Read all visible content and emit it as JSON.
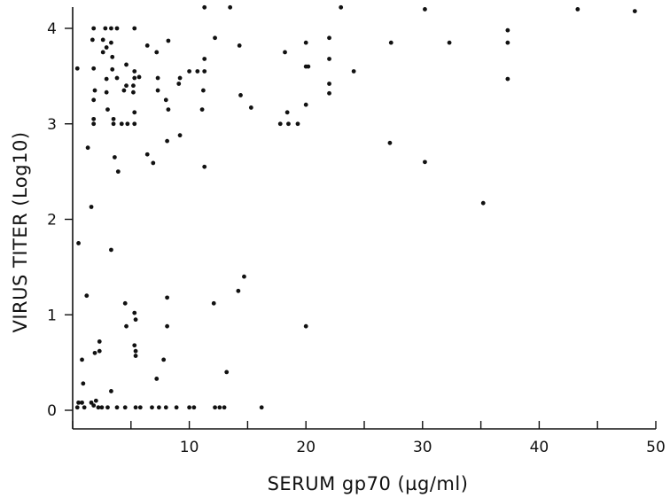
{
  "chart_data": {
    "type": "scatter",
    "title": "",
    "xlabel": "SERUM gp70 (µg/ml)",
    "ylabel": "VIRUS TITER (Log10)",
    "xlim": [
      0,
      50
    ],
    "ylim": [
      -0.15,
      4.25
    ],
    "x_ticks": [
      0,
      5,
      10,
      15,
      20,
      25,
      30,
      35,
      40,
      45,
      50
    ],
    "x_tick_labels": [
      "",
      "",
      "10",
      "",
      "20",
      "",
      "30",
      "",
      "40",
      "",
      "50"
    ],
    "y_ticks": [
      0,
      1,
      2,
      3,
      4
    ],
    "y_tick_labels": [
      "0",
      "1",
      "2",
      "3",
      "4"
    ],
    "grid": false,
    "legend": "none",
    "marker_color": "#111111",
    "points": [
      [
        0.4,
        3.58
      ],
      [
        0.5,
        1.75
      ],
      [
        0.8,
        0.53
      ],
      [
        0.9,
        0.28
      ],
      [
        0.4,
        0.03
      ],
      [
        0.5,
        0.08
      ],
      [
        0.8,
        0.08
      ],
      [
        1.0,
        0.03
      ],
      [
        1.2,
        1.2
      ],
      [
        1.3,
        2.75
      ],
      [
        1.6,
        2.13
      ],
      [
        1.6,
        0.08
      ],
      [
        1.8,
        0.05
      ],
      [
        2.0,
        0.1
      ],
      [
        2.2,
        0.03
      ],
      [
        2.5,
        0.03
      ],
      [
        3.0,
        0.03
      ],
      [
        3.8,
        0.03
      ],
      [
        1.7,
        3.88
      ],
      [
        1.8,
        4.0
      ],
      [
        1.8,
        3.58
      ],
      [
        1.9,
        3.35
      ],
      [
        1.8,
        3.05
      ],
      [
        1.8,
        3.0
      ],
      [
        1.8,
        3.25
      ],
      [
        1.9,
        0.6
      ],
      [
        2.3,
        0.62
      ],
      [
        2.3,
        0.72
      ],
      [
        2.6,
        3.88
      ],
      [
        2.6,
        3.75
      ],
      [
        2.8,
        4.0
      ],
      [
        2.9,
        3.47
      ],
      [
        2.9,
        3.8
      ],
      [
        3.0,
        3.15
      ],
      [
        2.9,
        3.33
      ],
      [
        3.3,
        4.0
      ],
      [
        3.3,
        3.85
      ],
      [
        3.4,
        3.7
      ],
      [
        3.4,
        3.57
      ],
      [
        3.5,
        3.0
      ],
      [
        3.5,
        3.05
      ],
      [
        3.6,
        2.65
      ],
      [
        3.8,
        4.0
      ],
      [
        3.8,
        3.48
      ],
      [
        3.9,
        2.5
      ],
      [
        3.3,
        1.68
      ],
      [
        3.3,
        0.2
      ],
      [
        4.2,
        3.0
      ],
      [
        4.4,
        3.35
      ],
      [
        4.6,
        3.62
      ],
      [
        4.7,
        3.0
      ],
      [
        4.6,
        3.4
      ],
      [
        4.5,
        1.12
      ],
      [
        4.6,
        0.88
      ],
      [
        4.5,
        0.03
      ],
      [
        5.3,
        4.0
      ],
      [
        5.3,
        3.55
      ],
      [
        5.3,
        3.48
      ],
      [
        5.2,
        3.4
      ],
      [
        5.2,
        3.33
      ],
      [
        5.3,
        3.12
      ],
      [
        5.3,
        3.0
      ],
      [
        5.7,
        3.49
      ],
      [
        5.3,
        1.02
      ],
      [
        5.4,
        0.95
      ],
      [
        5.3,
        0.68
      ],
      [
        5.4,
        0.62
      ],
      [
        5.4,
        0.57
      ],
      [
        5.4,
        0.03
      ],
      [
        5.8,
        0.03
      ],
      [
        6.4,
        3.82
      ],
      [
        6.4,
        2.68
      ],
      [
        6.9,
        2.59
      ],
      [
        7.2,
        3.75
      ],
      [
        7.3,
        3.48
      ],
      [
        7.3,
        3.35
      ],
      [
        7.2,
        0.33
      ],
      [
        7.8,
        0.53
      ],
      [
        6.8,
        0.03
      ],
      [
        7.4,
        0.03
      ],
      [
        8.0,
        0.03
      ],
      [
        8.2,
        3.87
      ],
      [
        8.0,
        3.25
      ],
      [
        8.2,
        3.15
      ],
      [
        8.1,
        2.82
      ],
      [
        8.1,
        1.18
      ],
      [
        8.1,
        0.88
      ],
      [
        9.2,
        3.48
      ],
      [
        9.1,
        3.42
      ],
      [
        9.2,
        2.88
      ],
      [
        8.9,
        0.03
      ],
      [
        10.0,
        3.55
      ],
      [
        10.7,
        3.55
      ],
      [
        10.0,
        0.03
      ],
      [
        10.4,
        0.03
      ],
      [
        11.3,
        4.22
      ],
      [
        11.3,
        3.68
      ],
      [
        11.3,
        3.55
      ],
      [
        11.2,
        3.35
      ],
      [
        11.1,
        3.15
      ],
      [
        11.3,
        2.55
      ],
      [
        12.2,
        3.9
      ],
      [
        12.1,
        1.12
      ],
      [
        12.2,
        0.03
      ],
      [
        12.6,
        0.03
      ],
      [
        13.0,
        0.03
      ],
      [
        13.5,
        4.22
      ],
      [
        13.2,
        0.4
      ],
      [
        14.3,
        3.82
      ],
      [
        14.4,
        3.3
      ],
      [
        14.2,
        1.25
      ],
      [
        14.7,
        1.4
      ],
      [
        15.3,
        3.17
      ],
      [
        16.2,
        0.03
      ],
      [
        17.8,
        3.0
      ],
      [
        18.2,
        3.75
      ],
      [
        18.4,
        3.12
      ],
      [
        18.5,
        3.0
      ],
      [
        19.3,
        3.0
      ],
      [
        20.0,
        3.85
      ],
      [
        20.0,
        3.6
      ],
      [
        20.2,
        3.6
      ],
      [
        20.0,
        3.2
      ],
      [
        20.0,
        0.88
      ],
      [
        22.0,
        3.9
      ],
      [
        22.0,
        3.68
      ],
      [
        22.0,
        3.42
      ],
      [
        22.0,
        3.32
      ],
      [
        23.0,
        4.22
      ],
      [
        24.1,
        3.55
      ],
      [
        27.3,
        3.85
      ],
      [
        27.2,
        2.8
      ],
      [
        30.2,
        4.2
      ],
      [
        30.2,
        2.6
      ],
      [
        32.3,
        3.85
      ],
      [
        35.2,
        2.17
      ],
      [
        37.3,
        3.98
      ],
      [
        37.3,
        3.85
      ],
      [
        37.3,
        3.47
      ],
      [
        43.3,
        4.2
      ],
      [
        48.2,
        4.18
      ]
    ]
  }
}
